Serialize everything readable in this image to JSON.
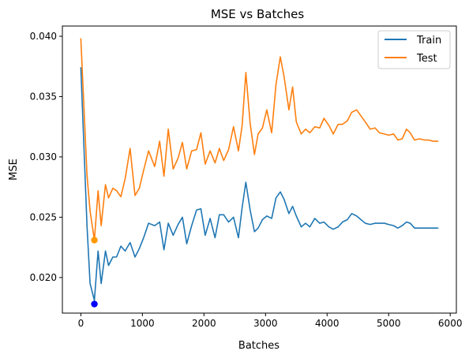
{
  "chart_data": {
    "type": "line",
    "title": "MSE vs Batches",
    "xlabel": "Batches",
    "ylabel": "MSE",
    "xlim": [
      -300,
      6100
    ],
    "ylim": [
      0.01705,
      0.04085
    ],
    "xticks": [
      0,
      1000,
      2000,
      3000,
      4000,
      5000,
      6000
    ],
    "xtick_labels": [
      "0",
      "1000",
      "2000",
      "3000",
      "4000",
      "5000",
      "6000"
    ],
    "yticks": [
      0.02,
      0.025,
      0.03,
      0.035,
      0.04
    ],
    "ytick_labels": [
      "0.020",
      "0.025",
      "0.030",
      "0.035",
      "0.040"
    ],
    "grid": false,
    "legend_position": "top-right",
    "series": [
      {
        "name": "Train",
        "color": "#1f77b4",
        "x": [
          0,
          100,
          150,
          220,
          280,
          330,
          400,
          450,
          520,
          580,
          650,
          720,
          800,
          880,
          950,
          1020,
          1100,
          1200,
          1280,
          1350,
          1420,
          1500,
          1580,
          1650,
          1720,
          1800,
          1880,
          1950,
          2020,
          2100,
          2180,
          2250,
          2320,
          2400,
          2480,
          2560,
          2620,
          2680,
          2750,
          2820,
          2880,
          2950,
          3020,
          3100,
          3170,
          3240,
          3300,
          3380,
          3440,
          3500,
          3580,
          3650,
          3720,
          3800,
          3880,
          3950,
          4030,
          4100,
          4180,
          4250,
          4330,
          4400,
          4480,
          4550,
          4620,
          4700,
          4780,
          4850,
          4930,
          5000,
          5080,
          5150,
          5220,
          5290,
          5350,
          5420,
          5500,
          5580,
          5650,
          5720,
          5800
        ],
        "values": [
          0.0374,
          0.0243,
          0.0195,
          0.0181,
          0.0222,
          0.0195,
          0.0222,
          0.021,
          0.0217,
          0.0217,
          0.0226,
          0.0222,
          0.0229,
          0.0217,
          0.0224,
          0.0233,
          0.0245,
          0.0243,
          0.0246,
          0.0223,
          0.0245,
          0.0235,
          0.0244,
          0.025,
          0.0228,
          0.0243,
          0.0256,
          0.0257,
          0.0235,
          0.0249,
          0.0233,
          0.0252,
          0.0252,
          0.0246,
          0.025,
          0.0233,
          0.0258,
          0.0279,
          0.0256,
          0.0238,
          0.0241,
          0.0248,
          0.0251,
          0.0249,
          0.0266,
          0.0271,
          0.0265,
          0.0253,
          0.0259,
          0.0251,
          0.0242,
          0.0245,
          0.0242,
          0.0249,
          0.0245,
          0.0246,
          0.0242,
          0.024,
          0.0242,
          0.0246,
          0.0248,
          0.0253,
          0.0251,
          0.0248,
          0.0245,
          0.0244,
          0.0245,
          0.0245,
          0.0245,
          0.0244,
          0.0243,
          0.0241,
          0.0243,
          0.0246,
          0.0245,
          0.0241,
          0.0241,
          0.0241,
          0.0241,
          0.0241,
          0.0241
        ]
      },
      {
        "name": "Test",
        "color": "#ff7f0e",
        "x": [
          0,
          100,
          150,
          220,
          280,
          330,
          400,
          450,
          520,
          580,
          650,
          720,
          800,
          880,
          950,
          1020,
          1100,
          1200,
          1280,
          1350,
          1420,
          1500,
          1580,
          1650,
          1720,
          1800,
          1880,
          1950,
          2020,
          2100,
          2180,
          2250,
          2320,
          2400,
          2480,
          2560,
          2620,
          2680,
          2750,
          2820,
          2880,
          2950,
          3020,
          3100,
          3170,
          3240,
          3300,
          3380,
          3440,
          3500,
          3580,
          3650,
          3720,
          3800,
          3880,
          3950,
          4030,
          4100,
          4180,
          4250,
          4330,
          4400,
          4480,
          4550,
          4620,
          4700,
          4780,
          4850,
          4930,
          5000,
          5080,
          5150,
          5220,
          5290,
          5350,
          5420,
          5500,
          5580,
          5650,
          5720,
          5800
        ],
        "values": [
          0.0398,
          0.0285,
          0.0255,
          0.0231,
          0.0272,
          0.0243,
          0.0277,
          0.0266,
          0.0274,
          0.0272,
          0.0267,
          0.0282,
          0.0307,
          0.0268,
          0.0274,
          0.0289,
          0.0305,
          0.0292,
          0.0313,
          0.0284,
          0.0323,
          0.029,
          0.0299,
          0.0312,
          0.029,
          0.0305,
          0.0306,
          0.032,
          0.0294,
          0.0305,
          0.0295,
          0.0307,
          0.0297,
          0.0306,
          0.0325,
          0.0305,
          0.0326,
          0.037,
          0.0328,
          0.0302,
          0.0319,
          0.0324,
          0.0339,
          0.032,
          0.036,
          0.0383,
          0.0367,
          0.0339,
          0.0358,
          0.0329,
          0.0319,
          0.0323,
          0.032,
          0.0325,
          0.0324,
          0.0332,
          0.0326,
          0.0319,
          0.0327,
          0.0327,
          0.033,
          0.0337,
          0.0339,
          0.0334,
          0.0329,
          0.0323,
          0.0324,
          0.032,
          0.0319,
          0.0318,
          0.0319,
          0.0314,
          0.0315,
          0.0323,
          0.032,
          0.0314,
          0.0315,
          0.0314,
          0.0314,
          0.0313,
          0.0313
        ]
      }
    ],
    "markers": [
      {
        "series": "Train",
        "x": 220,
        "y": 0.0178,
        "color": "#0000ff"
      },
      {
        "series": "Test",
        "x": 220,
        "y": 0.0231,
        "color": "#ff9900"
      }
    ]
  }
}
